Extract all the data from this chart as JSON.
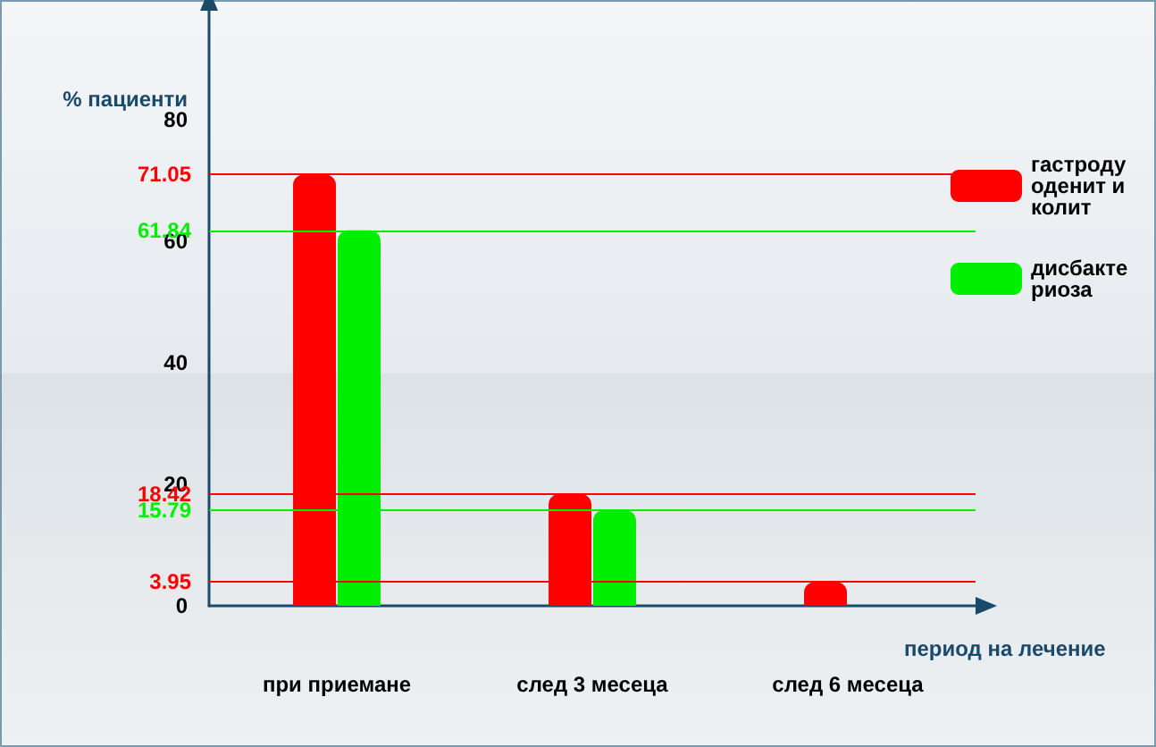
{
  "chart_data": {
    "type": "bar",
    "ylabel": "% пациенти",
    "xlabel": "период на лечение",
    "categories": [
      "при приемане",
      "след 3 месеца",
      "след 6 месеца"
    ],
    "series": [
      {
        "name": "гастродуоденит и колит",
        "color": "#ff0000",
        "values": [
          71.05,
          18.42,
          3.95
        ]
      },
      {
        "name": "дисбактериоза",
        "color": "#00ee00",
        "values": [
          61.84,
          15.79,
          null
        ]
      }
    ],
    "ylim": [
      0,
      98
    ],
    "yticks": [
      0,
      20,
      40,
      60,
      80
    ],
    "grid": false,
    "legend": "top right",
    "ref_lines": [
      {
        "axis": "y",
        "value": 71.05,
        "label": "71.05",
        "color": "#ff0000"
      },
      {
        "axis": "y",
        "value": 61.84,
        "label": "61.84",
        "color": "#00ee00"
      },
      {
        "axis": "y",
        "value": 18.42,
        "label": "18.42",
        "color": "#ff0000"
      },
      {
        "axis": "y",
        "value": 15.79,
        "label": "15.79",
        "color": "#00ee00"
      },
      {
        "axis": "y",
        "value": 3.95,
        "label": "3.95",
        "color": "#ff0000"
      }
    ]
  }
}
